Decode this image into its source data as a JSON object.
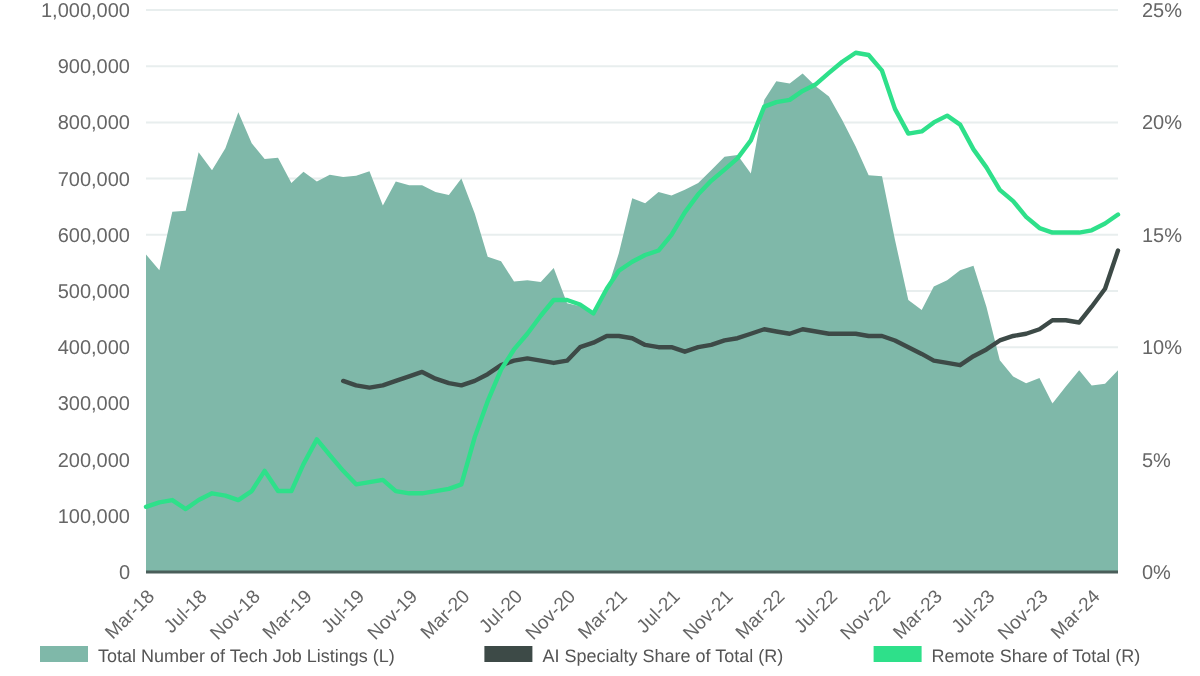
{
  "chart_data": {
    "type": "area",
    "xlim": [
      "2018-03",
      "2024-05"
    ],
    "xticks": [
      {
        "value": "2018-03",
        "label": "Mar-18"
      },
      {
        "value": "2018-07",
        "label": "Jul-18"
      },
      {
        "value": "2018-11",
        "label": "Nov-18"
      },
      {
        "value": "2019-03",
        "label": "Mar-19"
      },
      {
        "value": "2019-07",
        "label": "Jul-19"
      },
      {
        "value": "2019-11",
        "label": "Nov-19"
      },
      {
        "value": "2020-03",
        "label": "Mar-20"
      },
      {
        "value": "2020-07",
        "label": "Jul-20"
      },
      {
        "value": "2020-11",
        "label": "Nov-20"
      },
      {
        "value": "2021-03",
        "label": "Mar-21"
      },
      {
        "value": "2021-07",
        "label": "Jul-21"
      },
      {
        "value": "2021-11",
        "label": "Nov-21"
      },
      {
        "value": "2022-03",
        "label": "Mar-22"
      },
      {
        "value": "2022-07",
        "label": "Jul-22"
      },
      {
        "value": "2022-11",
        "label": "Nov-22"
      },
      {
        "value": "2023-03",
        "label": "Mar-23"
      },
      {
        "value": "2023-07",
        "label": "Jul-23"
      },
      {
        "value": "2023-11",
        "label": "Nov-23"
      },
      {
        "value": "2024-03",
        "label": "Mar-24"
      }
    ],
    "ylim": [
      0,
      1000000
    ],
    "yticks": [
      {
        "value": 0,
        "label": "0"
      },
      {
        "value": 100000,
        "label": "100,000"
      },
      {
        "value": 200000,
        "label": "200,000"
      },
      {
        "value": 300000,
        "label": "300,000"
      },
      {
        "value": 400000,
        "label": "400,000"
      },
      {
        "value": 500000,
        "label": "500,000"
      },
      {
        "value": 600000,
        "label": "600,000"
      },
      {
        "value": 700000,
        "label": "700,000"
      },
      {
        "value": 800000,
        "label": "800,000"
      },
      {
        "value": 900000,
        "label": "900,000"
      },
      {
        "value": 1000000,
        "label": "1,000,000"
      }
    ],
    "y2lim": [
      0,
      25
    ],
    "y2ticks": [
      {
        "value": 0,
        "label": "0%"
      },
      {
        "value": 5,
        "label": "5%"
      },
      {
        "value": 10,
        "label": "10%"
      },
      {
        "value": 15,
        "label": "15%"
      },
      {
        "value": 20,
        "label": "20%"
      },
      {
        "value": 25,
        "label": "25%"
      }
    ],
    "grid": "y",
    "legend": "bottom",
    "x": [
      "2018-03",
      "2018-04",
      "2018-05",
      "2018-06",
      "2018-07",
      "2018-08",
      "2018-09",
      "2018-10",
      "2018-11",
      "2018-12",
      "2019-01",
      "2019-02",
      "2019-03",
      "2019-04",
      "2019-05",
      "2019-06",
      "2019-07",
      "2019-08",
      "2019-09",
      "2019-10",
      "2019-11",
      "2019-12",
      "2020-01",
      "2020-02",
      "2020-03",
      "2020-04",
      "2020-05",
      "2020-06",
      "2020-07",
      "2020-08",
      "2020-09",
      "2020-10",
      "2020-11",
      "2020-12",
      "2021-01",
      "2021-02",
      "2021-03",
      "2021-04",
      "2021-05",
      "2021-06",
      "2021-07",
      "2021-08",
      "2021-09",
      "2021-10",
      "2021-11",
      "2021-12",
      "2022-01",
      "2022-02",
      "2022-03",
      "2022-04",
      "2022-05",
      "2022-06",
      "2022-07",
      "2022-08",
      "2022-09",
      "2022-10",
      "2022-11",
      "2022-12",
      "2023-01",
      "2023-02",
      "2023-03",
      "2023-04",
      "2023-05",
      "2023-06",
      "2023-07",
      "2023-08",
      "2023-09",
      "2023-10",
      "2023-11",
      "2023-12",
      "2024-01",
      "2024-02",
      "2024-03",
      "2024-04",
      "2024-05"
    ],
    "series": [
      {
        "name": "Total Number of Tech Job Listings (L)",
        "color": "#7fb8a9",
        "values": [
          565000,
          537000,
          641000,
          643000,
          747000,
          715000,
          754000,
          818000,
          763000,
          735000,
          737000,
          692000,
          712000,
          695000,
          707000,
          703000,
          705000,
          713000,
          652000,
          695000,
          688000,
          688000,
          676000,
          671000,
          700000,
          638000,
          561000,
          553000,
          517000,
          519000,
          516000,
          541000,
          478000,
          473000,
          460000,
          500000,
          567000,
          665000,
          656000,
          676000,
          670000,
          680000,
          692000,
          715000,
          739000,
          742000,
          709000,
          840000,
          873000,
          869000,
          887000,
          864000,
          846000,
          804000,
          757000,
          706000,
          704000,
          591000,
          484000,
          466000,
          508000,
          519000,
          537000,
          545000,
          472000,
          377000,
          348000,
          336000,
          345000,
          300000,
          330000,
          359000,
          332000,
          335000,
          359000
        ]
      },
      {
        "name": "AI Specialty Share of Total (R)",
        "type": "line",
        "axis": "y2",
        "color": "#3d4a47",
        "values": [
          null,
          null,
          null,
          null,
          null,
          null,
          null,
          null,
          null,
          null,
          null,
          null,
          null,
          null,
          null,
          8.5,
          8.3,
          8.2,
          8.3,
          8.5,
          8.7,
          8.9,
          8.6,
          8.4,
          8.3,
          8.5,
          8.8,
          9.2,
          9.4,
          9.5,
          9.4,
          9.3,
          9.4,
          10.0,
          10.2,
          10.5,
          10.5,
          10.4,
          10.1,
          10.0,
          10.0,
          9.8,
          10.0,
          10.1,
          10.3,
          10.4,
          10.6,
          10.8,
          10.7,
          10.6,
          10.8,
          10.7,
          10.6,
          10.6,
          10.6,
          10.5,
          10.5,
          10.3,
          10.0,
          9.7,
          9.4,
          9.3,
          9.2,
          9.6,
          9.9,
          10.3,
          10.5,
          10.6,
          10.8,
          11.2,
          11.2,
          11.1,
          11.8,
          12.6,
          14.3
        ]
      },
      {
        "name": "Remote Share of Total (R)",
        "type": "line",
        "axis": "y2",
        "color": "#2ee08a",
        "values": [
          2.9,
          3.1,
          3.2,
          2.8,
          3.2,
          3.5,
          3.4,
          3.2,
          3.6,
          4.5,
          3.6,
          3.6,
          4.8,
          5.9,
          5.2,
          4.5,
          3.9,
          4.0,
          4.1,
          3.6,
          3.5,
          3.5,
          3.6,
          3.7,
          3.9,
          6.0,
          7.6,
          9.0,
          9.9,
          10.6,
          11.4,
          12.1,
          12.1,
          11.9,
          11.5,
          12.6,
          13.4,
          13.8,
          14.1,
          14.3,
          15.0,
          16.0,
          16.8,
          17.4,
          17.9,
          18.4,
          19.2,
          20.7,
          20.9,
          21.0,
          21.4,
          21.7,
          22.2,
          22.7,
          23.1,
          23.0,
          22.3,
          20.6,
          19.5,
          19.6,
          20.0,
          20.3,
          19.9,
          18.8,
          18.0,
          17.0,
          16.5,
          15.8,
          15.3,
          15.1,
          15.1,
          15.1,
          15.2,
          15.5,
          15.9
        ]
      }
    ]
  }
}
